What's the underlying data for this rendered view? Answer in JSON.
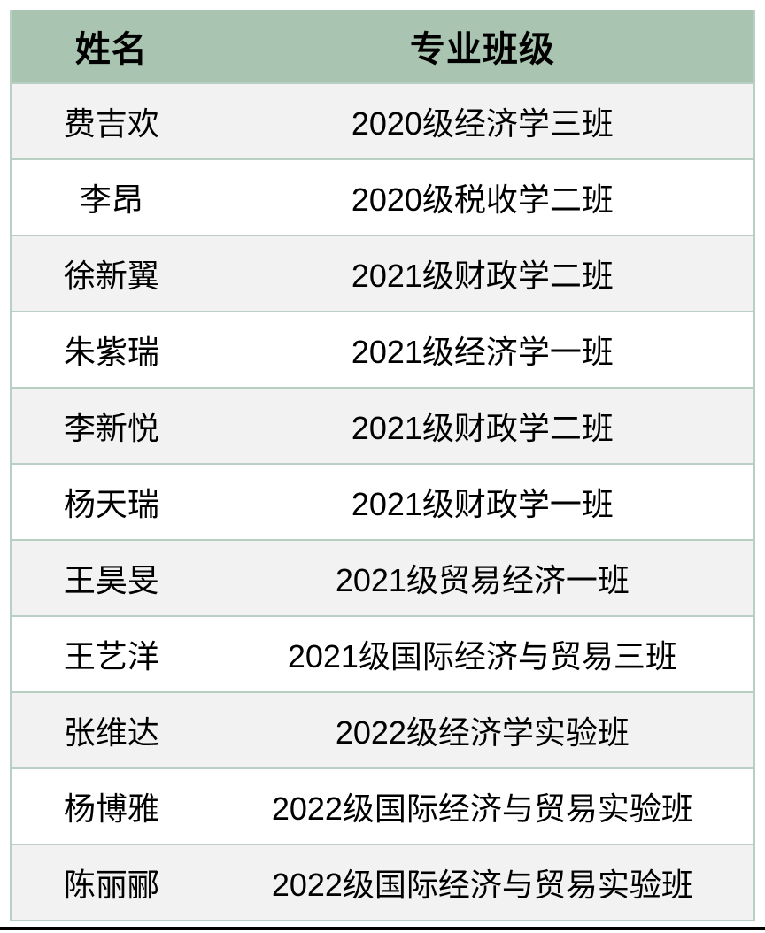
{
  "table": {
    "columns": [
      {
        "label": "姓名"
      },
      {
        "label": "专业班级"
      }
    ],
    "rows": [
      {
        "name": "费吉欢",
        "class": "2020级经济学三班"
      },
      {
        "name": "李昂",
        "class": "2020级税收学二班"
      },
      {
        "name": "徐新翼",
        "class": "2021级财政学二班"
      },
      {
        "name": "朱紫瑞",
        "class": "2021级经济学一班"
      },
      {
        "name": "李新悦",
        "class": "2021级财政学二班"
      },
      {
        "name": "杨天瑞",
        "class": "2021级财政学一班"
      },
      {
        "name": "王昊旻",
        "class": "2021级贸易经济一班"
      },
      {
        "name": "王艺洋",
        "class": "2021级国际经济与贸易三班"
      },
      {
        "name": "张维达",
        "class": "2022级经济学实验班"
      },
      {
        "name": "杨博雅",
        "class": "2022级国际经济与贸易实验班"
      },
      {
        "name": "陈丽郦",
        "class": "2022级国际经济与贸易实验班"
      }
    ]
  },
  "colors": {
    "header_bg": "#a9c4b0",
    "row_alt_bg": "#f2f2f2",
    "row_bg": "#ffffff",
    "border": "#b9cfc3",
    "text": "#000000",
    "bottom_rule": "#000000"
  }
}
